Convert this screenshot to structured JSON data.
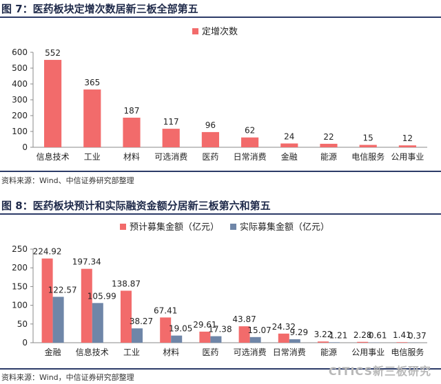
{
  "colors": {
    "pink": "#f26b6b",
    "blue": "#6f86a8",
    "title": "#1f2a4a",
    "rule": "#2b3a67"
  },
  "figure7": {
    "title": "图 7：医药板块定增次数居新三板全部第五",
    "source": "资料来源：Wind、中信证券研究部整理"
  },
  "figure8": {
    "title": "图 8：医药板块预计和实际融资金额分居新三板第六和第五",
    "source": "资料来源：Wind，中信证券研究部整理"
  },
  "watermark": "CITICS新三板研究",
  "chart_data": [
    {
      "type": "bar",
      "categories": [
        "信息技术",
        "工业",
        "材料",
        "可选消费",
        "医药",
        "日常消费",
        "金融",
        "能源",
        "电信服务",
        "公用事业"
      ],
      "series": [
        {
          "name": "定增次数",
          "values": [
            552,
            365,
            187,
            117,
            96,
            62,
            24,
            22,
            15,
            12
          ]
        }
      ],
      "data_labels": [
        "552",
        "365",
        "187",
        "117",
        "96",
        "62",
        "24",
        "22",
        "15",
        "12"
      ],
      "yticks": [
        0,
        100,
        200,
        300,
        400,
        500,
        600
      ],
      "ylim": [
        0,
        600
      ],
      "legend": "top-center"
    },
    {
      "type": "bar",
      "categories": [
        "金融",
        "信息技术",
        "工业",
        "材料",
        "医药",
        "可选消费",
        "日常消费",
        "能源",
        "公用事业",
        "电信服务"
      ],
      "series": [
        {
          "name": "预计募集金额（亿元）",
          "values": [
            224.92,
            197.34,
            138.87,
            67.41,
            29.61,
            43.87,
            24.32,
            3.22,
            2.28,
            1.41
          ]
        },
        {
          "name": "实际募集金额（亿元）",
          "values": [
            122.57,
            105.99,
            38.27,
            19.05,
            17.38,
            15.07,
            9.29,
            1.21,
            0.61,
            0.37
          ]
        }
      ],
      "data_labels": [
        [
          "224.92",
          "197.34",
          "138.87",
          "67.41",
          "29.61",
          "43.87",
          "24.32",
          "3.22",
          "2.28",
          "1.41"
        ],
        [
          "122.57",
          "105.99",
          "38.27",
          "19.05",
          "17.38",
          "15.07",
          "9.29",
          "1.21",
          "0.61",
          "0.37"
        ]
      ],
      "yticks": [
        0,
        50,
        100,
        150,
        200,
        250
      ],
      "ylim": [
        0,
        250
      ],
      "legend": "top-center"
    }
  ]
}
